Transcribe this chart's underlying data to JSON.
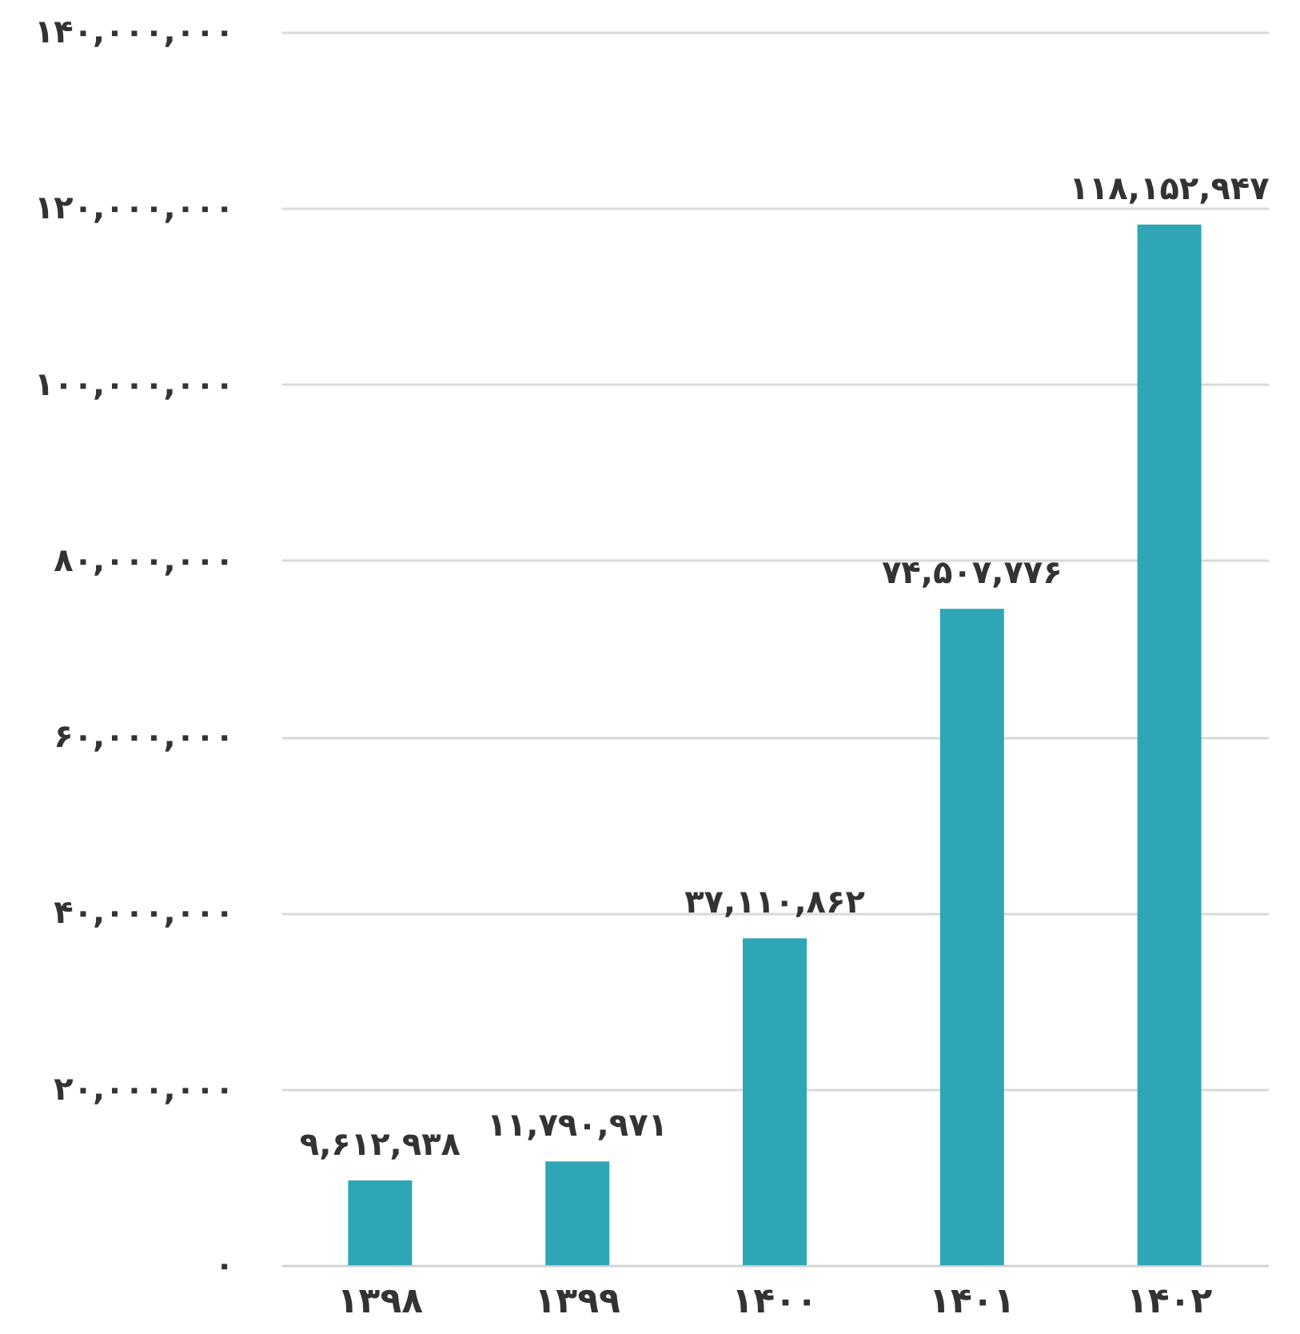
{
  "chart_data": {
    "type": "bar",
    "categories": [
      "۱۳۹۸",
      "۱۳۹۹",
      "۱۴۰۰",
      "۱۴۰۱",
      "۱۴۰۲"
    ],
    "values": [
      9612938,
      11790971,
      37110862,
      74507776,
      118152947
    ],
    "value_labels": [
      "۹,۶۱۲,۹۳۸",
      "۱۱,۷۹۰,۹۷۱",
      "۳۷,۱۱۰,۸۶۲",
      "۷۴,۵۰۷,۷۷۶",
      "۱۱۸,۱۵۲,۹۴۷"
    ],
    "color": "#2ea6b6",
    "ylim": [
      0,
      140000000
    ],
    "yticks": [
      {
        "value": 0,
        "label": "۰"
      },
      {
        "value": 20000000,
        "label": "۲۰,۰۰۰,۰۰۰"
      },
      {
        "value": 40000000,
        "label": "۴۰,۰۰۰,۰۰۰"
      },
      {
        "value": 60000000,
        "label": "۶۰,۰۰۰,۰۰۰"
      },
      {
        "value": 80000000,
        "label": "۸۰,۰۰۰,۰۰۰"
      },
      {
        "value": 100000000,
        "label": "۱۰۰,۰۰۰,۰۰۰"
      },
      {
        "value": 120000000,
        "label": "۱۲۰,۰۰۰,۰۰۰"
      },
      {
        "value": 140000000,
        "label": "۱۴۰,۰۰۰,۰۰۰"
      }
    ],
    "grid": "y"
  }
}
